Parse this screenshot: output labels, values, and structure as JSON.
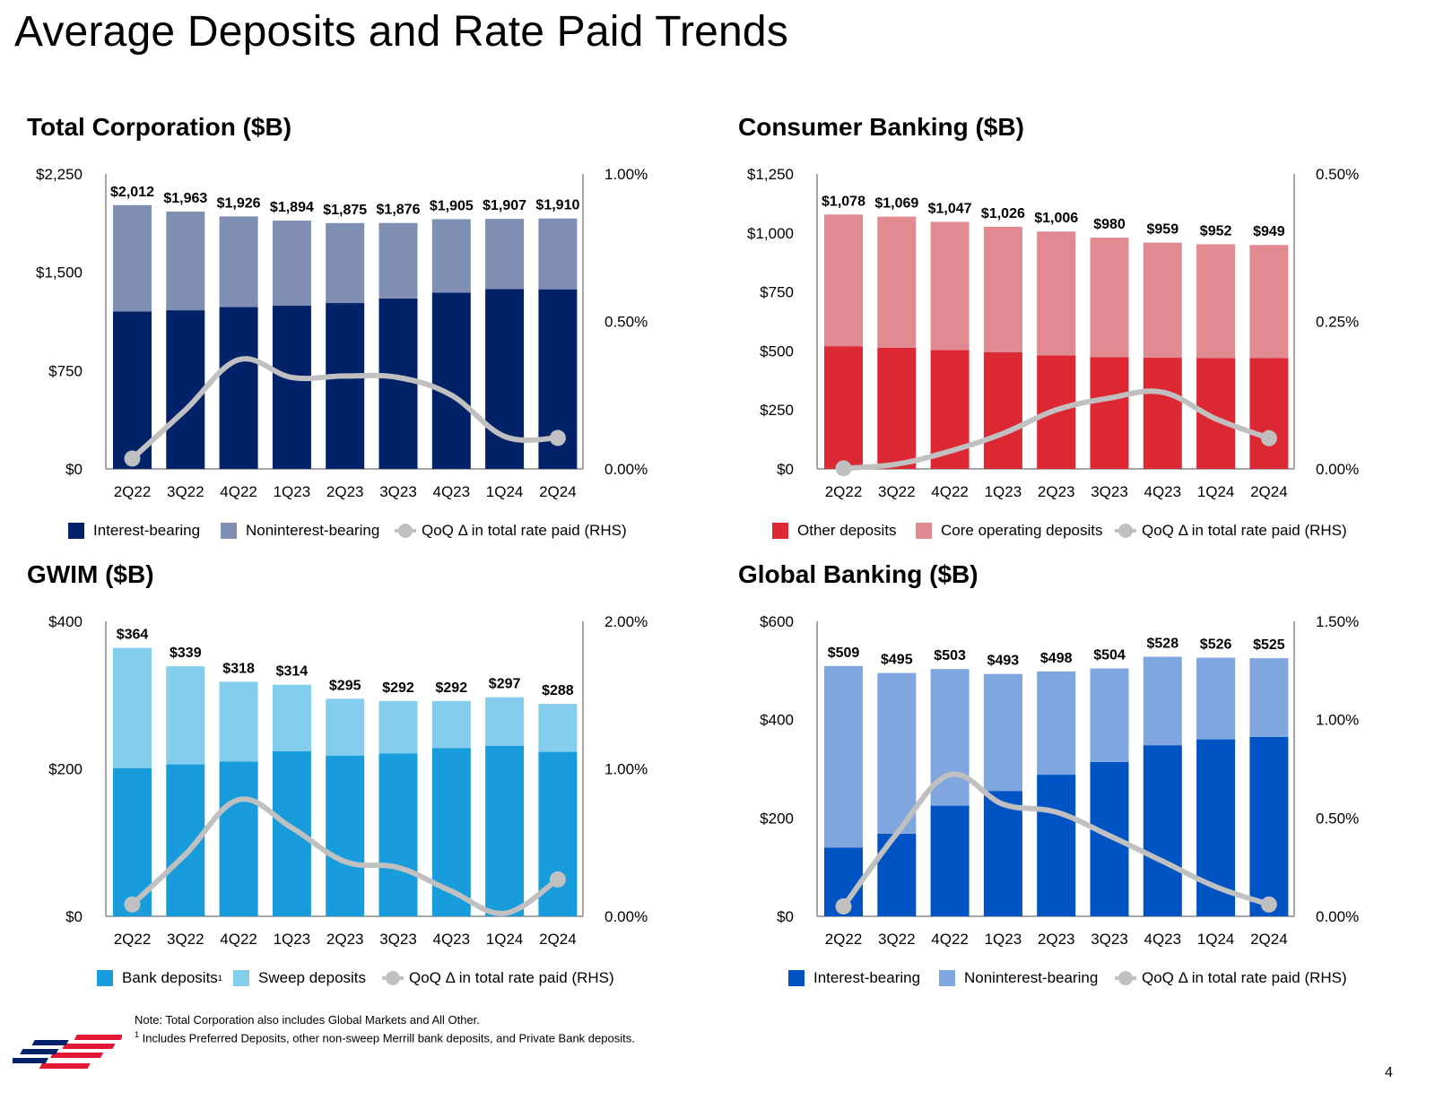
{
  "page": {
    "title": "Average Deposits and Rate Paid Trends",
    "page_number": "4",
    "footnotes": [
      "Note: Total Corporation also includes Global Markets and All Other.",
      "Includes Preferred Deposits, other non-sweep Merrill bank deposits, and Private Bank deposits."
    ],
    "footnote_marker": "1"
  },
  "colors": {
    "line": "#c0c0c0",
    "axis": "#888888"
  },
  "legend_icon": "line-with-circle-marker",
  "chart_data": [
    {
      "id": "total-corporation",
      "type": "bar",
      "stacked": true,
      "title": "Total Corporation ($B)",
      "categories": [
        "2Q22",
        "3Q22",
        "4Q22",
        "1Q23",
        "2Q23",
        "3Q23",
        "4Q23",
        "1Q24",
        "2Q24"
      ],
      "ylim": [
        0,
        2250
      ],
      "yticks": [
        0,
        750,
        1500,
        2250
      ],
      "ytick_labels": [
        "$0",
        "$750",
        "$1,500",
        "$2,250"
      ],
      "y2lim": [
        0,
        1.0
      ],
      "y2ticks": [
        0,
        0.5,
        1.0
      ],
      "y2tick_labels": [
        "0.00%",
        "0.50%",
        "1.00%"
      ],
      "series": [
        {
          "name": "Interest-bearing",
          "color": "#012169",
          "values": [
            1200,
            1210,
            1235,
            1245,
            1265,
            1300,
            1345,
            1372,
            1370
          ]
        },
        {
          "name": "Noninterest-bearing",
          "color": "#7f8fb4",
          "values": [
            812,
            753,
            691,
            649,
            610,
            576,
            560,
            535,
            540
          ]
        }
      ],
      "totals_labels": [
        "$2,012",
        "$1,963",
        "$1,926",
        "$1,894",
        "$1,875",
        "$1,876",
        "$1,905",
        "$1,907",
        "$1,910"
      ],
      "line": {
        "name": "QoQ Δ in total rate paid (RHS)",
        "values": [
          0.035,
          0.2,
          0.37,
          0.31,
          0.315,
          0.31,
          0.25,
          0.11,
          0.105
        ]
      },
      "grid": false,
      "legend_position": "bottom"
    },
    {
      "id": "consumer-banking",
      "type": "bar",
      "stacked": true,
      "title": "Consumer Banking ($B)",
      "categories": [
        "2Q22",
        "3Q22",
        "4Q22",
        "1Q23",
        "2Q23",
        "3Q23",
        "4Q23",
        "1Q24",
        "2Q24"
      ],
      "ylim": [
        0,
        1250
      ],
      "yticks": [
        0,
        250,
        500,
        750,
        1000,
        1250
      ],
      "ytick_labels": [
        "$0",
        "$250",
        "$500",
        "$750",
        "$1,000",
        "$1,250"
      ],
      "y2lim": [
        0,
        0.5
      ],
      "y2ticks": [
        0,
        0.25,
        0.5
      ],
      "y2tick_labels": [
        "0.00%",
        "0.25%",
        "0.50%"
      ],
      "series": [
        {
          "name": "Other deposits",
          "color": "#dc2832",
          "values": [
            520,
            514,
            504,
            494,
            481,
            474,
            471,
            470,
            470
          ]
        },
        {
          "name": "Core operating deposits",
          "color": "#e18a91",
          "values": [
            558,
            555,
            543,
            532,
            525,
            506,
            488,
            482,
            479
          ]
        }
      ],
      "totals_labels": [
        "$1,078",
        "$1,069",
        "$1,047",
        "$1,026",
        "$1,006",
        "$980",
        "$959",
        "$952",
        "$949"
      ],
      "line": {
        "name": "QoQ Δ in total rate paid (RHS)",
        "values": [
          0.001,
          0.008,
          0.03,
          0.06,
          0.1,
          0.12,
          0.13,
          0.085,
          0.052
        ]
      },
      "grid": false,
      "legend_position": "bottom"
    },
    {
      "id": "gwim",
      "type": "bar",
      "stacked": true,
      "title": "GWIM ($B)",
      "categories": [
        "2Q22",
        "3Q22",
        "4Q22",
        "1Q23",
        "2Q23",
        "3Q23",
        "4Q23",
        "1Q24",
        "2Q24"
      ],
      "ylim": [
        0,
        400
      ],
      "yticks": [
        0,
        200,
        400
      ],
      "ytick_labels": [
        "$0",
        "$200",
        "$400"
      ],
      "y2lim": [
        0,
        2.0
      ],
      "y2ticks": [
        0,
        1.0,
        2.0
      ],
      "y2tick_labels": [
        "0.00%",
        "1.00%",
        "2.00%"
      ],
      "series": [
        {
          "name": "Bank deposits",
          "sup": "1",
          "color": "#199cdc",
          "values": [
            201,
            206,
            210,
            224,
            218,
            221,
            228,
            231,
            223
          ]
        },
        {
          "name": "Sweep deposits",
          "color": "#84cdec",
          "values": [
            163,
            133,
            108,
            90,
            77,
            71,
            64,
            66,
            65
          ]
        }
      ],
      "totals_labels": [
        "$364",
        "$339",
        "$318",
        "$314",
        "$295",
        "$292",
        "$292",
        "$297",
        "$288"
      ],
      "line": {
        "name": "QoQ Δ in total rate paid (RHS)",
        "values": [
          0.08,
          0.42,
          0.79,
          0.6,
          0.37,
          0.33,
          0.17,
          0.02,
          0.25
        ]
      },
      "grid": false,
      "legend_position": "bottom"
    },
    {
      "id": "global-banking",
      "type": "bar",
      "stacked": true,
      "title": "Global Banking ($B)",
      "categories": [
        "2Q22",
        "3Q22",
        "4Q22",
        "1Q23",
        "2Q23",
        "3Q23",
        "4Q23",
        "1Q24",
        "2Q24"
      ],
      "ylim": [
        0,
        600
      ],
      "yticks": [
        0,
        200,
        400,
        600
      ],
      "ytick_labels": [
        "$0",
        "$200",
        "$400",
        "$600"
      ],
      "y2lim": [
        0,
        1.5
      ],
      "y2ticks": [
        0,
        0.5,
        1.0,
        1.5
      ],
      "y2tick_labels": [
        "0.00%",
        "0.50%",
        "1.00%",
        "1.50%"
      ],
      "series": [
        {
          "name": "Interest-bearing",
          "color": "#0053c2",
          "values": [
            140,
            168,
            225,
            255,
            288,
            314,
            348,
            360,
            365
          ]
        },
        {
          "name": "Noninterest-bearing",
          "color": "#7fa6de",
          "values": [
            369,
            327,
            278,
            238,
            210,
            190,
            180,
            166,
            160
          ]
        }
      ],
      "totals_labels": [
        "$509",
        "$495",
        "$503",
        "$493",
        "$498",
        "$504",
        "$528",
        "$526",
        "$525"
      ],
      "line": {
        "name": "QoQ Δ in total rate paid (RHS)",
        "values": [
          0.05,
          0.42,
          0.72,
          0.57,
          0.53,
          0.41,
          0.28,
          0.15,
          0.06
        ]
      },
      "grid": false,
      "legend_position": "bottom"
    }
  ]
}
